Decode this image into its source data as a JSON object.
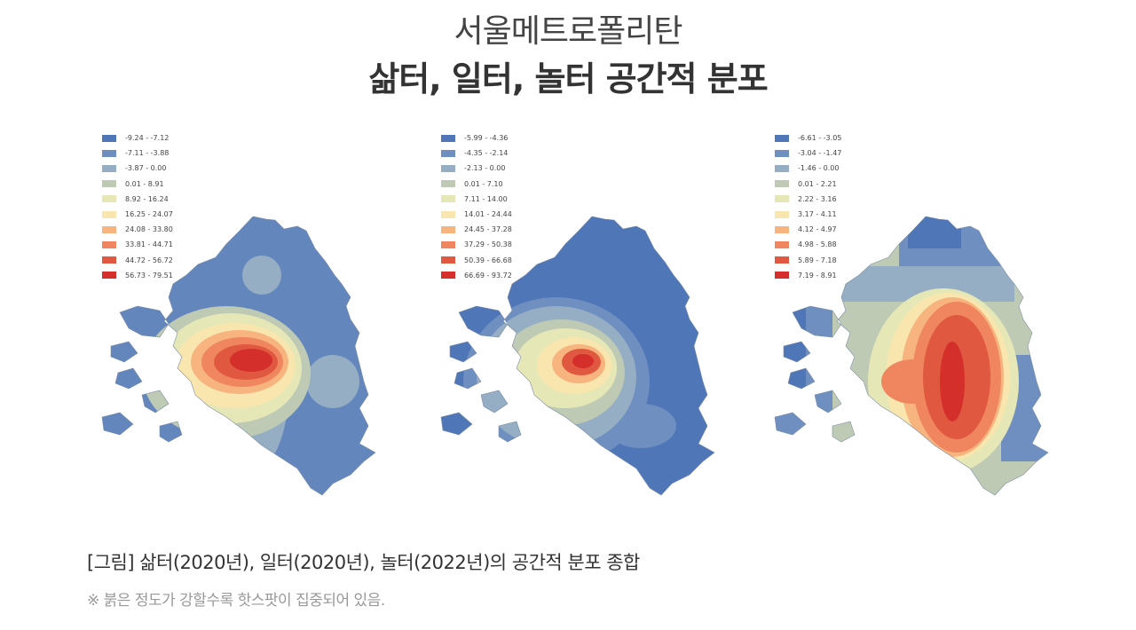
{
  "title": {
    "line1": "서울메트로폴리탄",
    "line2": "삶터, 일터, 놀터 공간적 분포"
  },
  "colors": [
    "#4f76b7",
    "#6e8fc0",
    "#95aec4",
    "#bfcab5",
    "#e5e8b6",
    "#f9e5ae",
    "#f7b47e",
    "#ef8660",
    "#e0583f",
    "#d42f2a"
  ],
  "maps": [
    {
      "name": "삶터(2020년)",
      "legend": [
        "-9.24 - -7.12",
        "-7.11 - -3.88",
        "-3.87 - 0.00",
        "0.01 - 8.91",
        "8.92 - 16.24",
        "16.25 - 24.07",
        "24.08 - 33.80",
        "33.81 - 44.71",
        "44.72 - 56.72",
        "56.73 - 79.51"
      ]
    },
    {
      "name": "일터(2020년)",
      "legend": [
        "-5.99 - -4.36",
        "-4.35 - -2.14",
        "-2.13 - 0.00",
        "0.01 - 7.10",
        "7.11 - 14.00",
        "14.01 - 24.44",
        "24.45 - 37.28",
        "37.29 - 50.38",
        "50.39 - 66.68",
        "66.69 - 93.72"
      ]
    },
    {
      "name": "놀터(2022년)",
      "legend": [
        "-6.61 - -3.05",
        "-3.04 - -1.47",
        "-1.46 - 0.00",
        "0.01 - 2.21",
        "2.22 - 3.16",
        "3.17 - 4.11",
        "4.12 - 4.97",
        "4.98 - 5.88",
        "5.89 - 7.18",
        "7.19 - 8.91"
      ]
    }
  ],
  "caption": "[그림] 삶터(2020년), 일터(2020년), 놀터(2022년)의 공간적 분포 종합",
  "note": "※ 붉은 정도가 강할수록 핫스팟이 집중되어 있음."
}
